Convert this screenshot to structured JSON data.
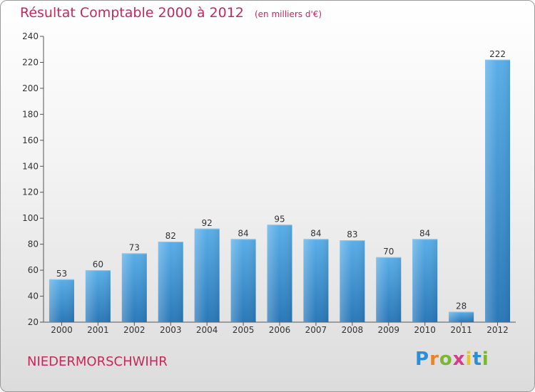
{
  "header": {
    "title": "Résultat Comptable 2000 à 2012",
    "unit": "(en milliers d'€)"
  },
  "commune": "NIEDERMORSCHWIHR",
  "logo": {
    "letters": [
      "P",
      "r",
      "o",
      "x",
      "i",
      "t",
      "i"
    ],
    "colors": [
      "#2a8fd6",
      "#e8832a",
      "#7ab832",
      "#d83a8e",
      "#e8c42a",
      "#2a8fd6",
      "#7ab832"
    ]
  },
  "colors": {
    "bar_top": "#5aaee8",
    "bar_bottom": "#2a78b8",
    "title": "#c8285a"
  },
  "chart_data": {
    "type": "bar",
    "title": "Résultat Comptable 2000 à 2012",
    "xlabel": "",
    "ylabel": "",
    "categories": [
      "2000",
      "2001",
      "2002",
      "2003",
      "2004",
      "2005",
      "2006",
      "2007",
      "2008",
      "2009",
      "2010",
      "2011",
      "2012"
    ],
    "values": [
      53,
      60,
      73,
      82,
      92,
      84,
      95,
      84,
      83,
      70,
      84,
      28,
      222
    ],
    "ylim": [
      20,
      240
    ],
    "yticks": [
      20,
      40,
      60,
      80,
      100,
      120,
      140,
      160,
      180,
      200,
      220,
      240
    ],
    "grid": false
  }
}
